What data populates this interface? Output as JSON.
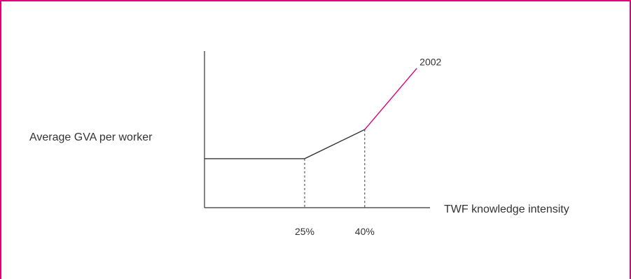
{
  "colors": {
    "border": "#e0007a",
    "axis": "#333333",
    "base_line": "#333333",
    "highlight_line": "#e0007a"
  },
  "chart_data": {
    "type": "line",
    "title": "",
    "ylabel": "Average GVA per worker",
    "xlabel": "TWF knowledge intensity",
    "x_ticks": [
      "25%",
      "40%"
    ],
    "xlim": [
      0,
      56
    ],
    "ylim": [
      0,
      10
    ],
    "y_ticks_shown": false,
    "grid": false,
    "series": [
      {
        "name": "",
        "color": "#333333",
        "points": [
          [
            0,
            3.2
          ],
          [
            25,
            3.2
          ],
          [
            40,
            5.1
          ]
        ]
      },
      {
        "name": "",
        "color": "#e0007a",
        "points": [
          [
            40,
            5.1
          ],
          [
            53,
            9.1
          ]
        ]
      }
    ],
    "reference_lines": [
      {
        "x": 25,
        "style": "dashed"
      },
      {
        "x": 40,
        "style": "dashed"
      }
    ],
    "annotations": [
      {
        "text": "2002",
        "x": 53,
        "y": 9.1
      }
    ]
  }
}
